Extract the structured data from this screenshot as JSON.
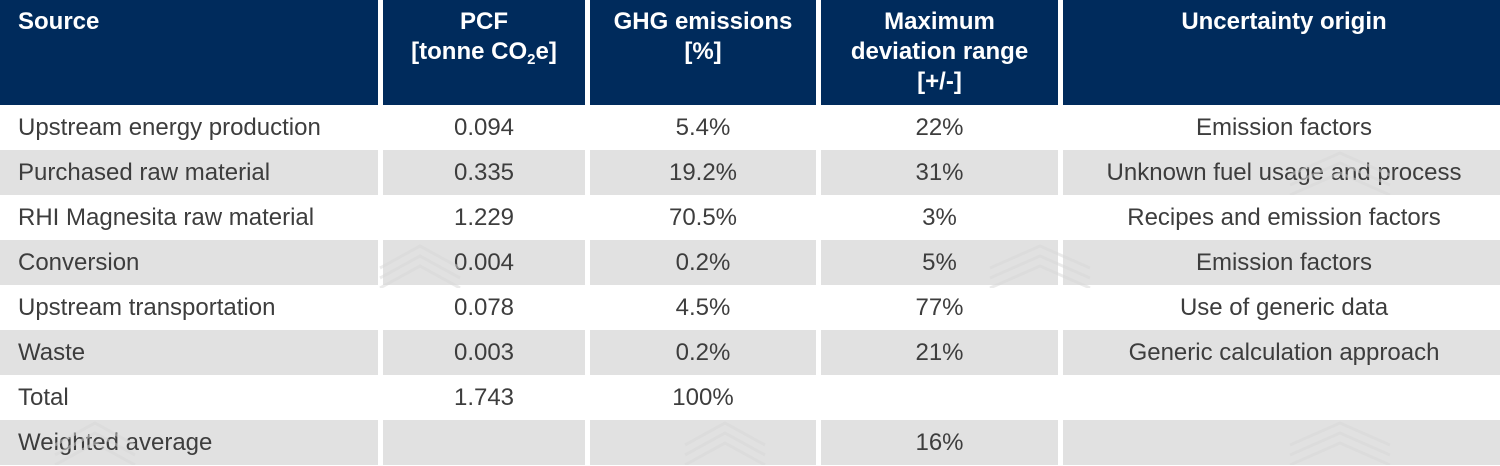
{
  "header": {
    "source": "Source",
    "pcf_line1": "PCF",
    "pcf_line2_a": "[tonne CO",
    "pcf_line2_sub": "2",
    "pcf_line2_b": "e]",
    "ghg_line1": "GHG emissions",
    "ghg_line2": "[%]",
    "dev_line1": "Maximum",
    "dev_line2": "deviation range",
    "dev_line3": "[+/-]",
    "uncertainty": "Uncertainty origin"
  },
  "rows": [
    {
      "source": "Upstream energy production",
      "pcf": "0.094",
      "ghg": "5.4%",
      "dev": "22%",
      "origin": "Emission factors"
    },
    {
      "source": "Purchased raw material",
      "pcf": "0.335",
      "ghg": "19.2%",
      "dev": "31%",
      "origin": "Unknown fuel usage and process"
    },
    {
      "source": "RHI Magnesita raw material",
      "pcf": "1.229",
      "ghg": "70.5%",
      "dev": "3%",
      "origin": "Recipes and emission factors"
    },
    {
      "source": "Conversion",
      "pcf": "0.004",
      "ghg": "0.2%",
      "dev": "5%",
      "origin": "Emission factors"
    },
    {
      "source": "Upstream transportation",
      "pcf": "0.078",
      "ghg": "4.5%",
      "dev": "77%",
      "origin": "Use of generic data"
    },
    {
      "source": "Waste",
      "pcf": "0.003",
      "ghg": "0.2%",
      "dev": "21%",
      "origin": "Generic calculation approach"
    },
    {
      "source": "Total",
      "pcf": "1.743",
      "ghg": "100%",
      "dev": "",
      "origin": ""
    },
    {
      "source": "Weighted average",
      "pcf": "",
      "ghg": "",
      "dev": "16%",
      "origin": ""
    }
  ],
  "colors": {
    "header_bg": "#002b5c",
    "shade": "#e1e1e1",
    "text": "#3d3d3d"
  },
  "watermark_icon": "layered-diamond-watermark-icon"
}
